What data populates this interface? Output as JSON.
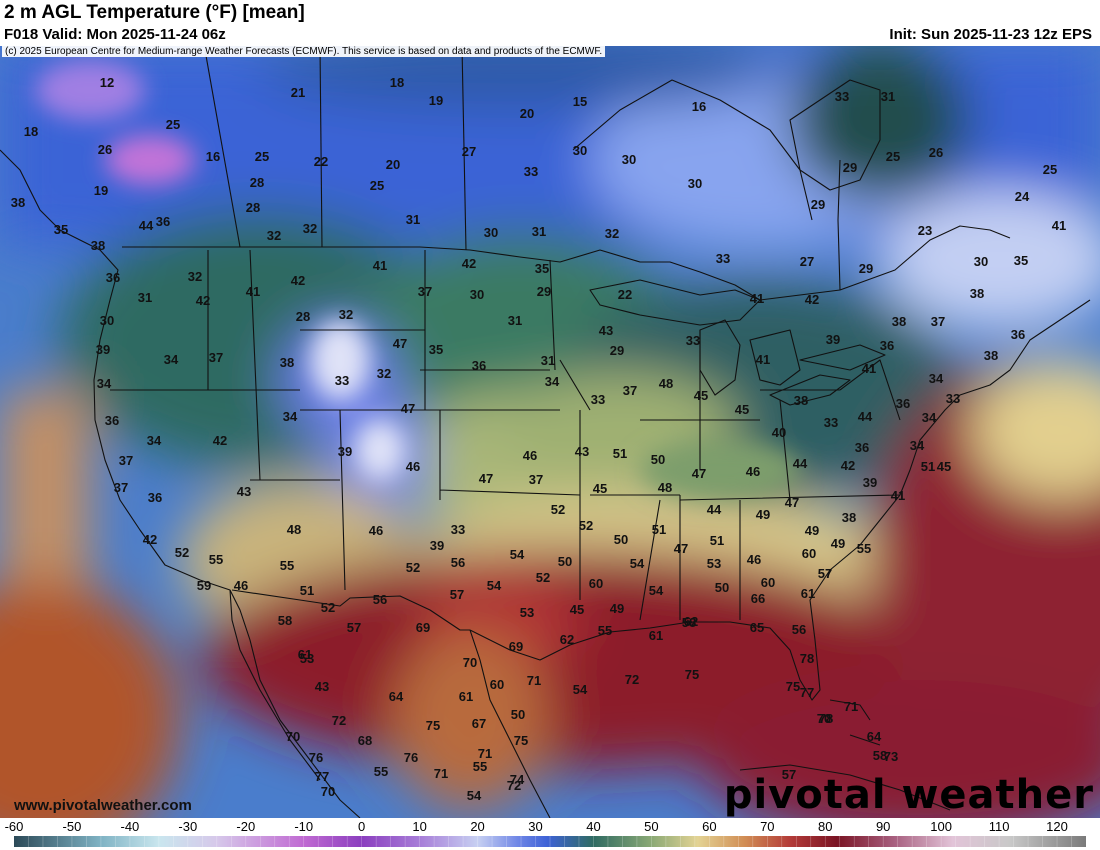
{
  "header": {
    "title": "2 m AGL Temperature (°F) [mean]",
    "valid": "F018 Valid: Mon 2025-11-24 06z",
    "init": "Init: Sun 2025-11-23 12z EPS",
    "copyright": "(c) 2025 European Centre for Medium-range Weather Forecasts (ECMWF). This service is based on data and products of the ECMWF."
  },
  "footer": {
    "site": "www.pivotalweather.com",
    "logo": "pivotal weather"
  },
  "colorbar": {
    "ticks": [
      "-60",
      "-50",
      "-40",
      "-30",
      "-20",
      "-10",
      "0",
      "10",
      "20",
      "30",
      "40",
      "50",
      "60",
      "70",
      "80",
      "90",
      "100",
      "110",
      "120"
    ],
    "min": -60,
    "max": 125
  },
  "colors": {
    "cold": "#3e63d8",
    "freezing_blue": "#5a7ee8",
    "teal": "#2f6b62",
    "green": "#4f8a6a",
    "tan": "#d9cf8c",
    "orange": "#c8784c",
    "warm_red": "#b23a3a",
    "dark_red": "#7d1626",
    "purple": "#b562c9"
  },
  "map_values": [
    "12",
    "18",
    "21",
    "18",
    "19",
    "20",
    "15",
    "16",
    "33",
    "31",
    "25",
    "26",
    "16",
    "25",
    "22",
    "20",
    "27",
    "30",
    "30",
    "30",
    "25",
    "26",
    "25",
    "19",
    "28",
    "25",
    "33",
    "29",
    "24",
    "29",
    "38",
    "36",
    "28",
    "31",
    "30",
    "31",
    "32",
    "32",
    "32",
    "27",
    "29",
    "23",
    "30",
    "41",
    "35",
    "38",
    "44",
    "41",
    "42",
    "35",
    "33",
    "35",
    "36",
    "32",
    "42",
    "30",
    "29",
    "22",
    "41",
    "42",
    "38",
    "31",
    "42",
    "41",
    "31",
    "37",
    "28",
    "32",
    "43",
    "38",
    "37",
    "36",
    "30",
    "39",
    "34",
    "37",
    "38",
    "33",
    "32",
    "47",
    "35",
    "36",
    "31",
    "29",
    "33",
    "41",
    "39",
    "36",
    "41",
    "38",
    "34",
    "36",
    "34",
    "42",
    "34",
    "39",
    "47",
    "34",
    "33",
    "37",
    "48",
    "45",
    "45",
    "40",
    "38",
    "33",
    "44",
    "36",
    "34",
    "34",
    "33",
    "34",
    "45",
    "51",
    "37",
    "37",
    "36",
    "43",
    "46",
    "47",
    "46",
    "37",
    "43",
    "51",
    "50",
    "47",
    "46",
    "44",
    "42",
    "39",
    "36",
    "41",
    "45",
    "48",
    "44",
    "49",
    "47",
    "38",
    "49",
    "48",
    "46",
    "42",
    "52",
    "33",
    "39",
    "54",
    "52",
    "52",
    "50",
    "51",
    "47",
    "51",
    "46",
    "49",
    "55",
    "55",
    "59",
    "46",
    "52",
    "56",
    "55",
    "51",
    "54",
    "52",
    "50",
    "60",
    "54",
    "54",
    "53",
    "50",
    "60",
    "60",
    "57",
    "52",
    "56",
    "57",
    "53",
    "45",
    "49",
    "58",
    "66",
    "61",
    "57",
    "58",
    "61",
    "43",
    "55",
    "61",
    "62",
    "65",
    "56",
    "62",
    "69",
    "53",
    "69",
    "70",
    "60",
    "54",
    "72",
    "75",
    "78",
    "77",
    "75",
    "64",
    "61",
    "50",
    "71",
    "75",
    "67",
    "72",
    "68",
    "71",
    "70",
    "75",
    "71",
    "70",
    "76",
    "64",
    "73",
    "74",
    "76",
    "71",
    "54",
    "55",
    "57",
    "58",
    "78",
    "77",
    "70",
    "72",
    "55",
    "74",
    "78"
  ],
  "legend_title": ""
}
